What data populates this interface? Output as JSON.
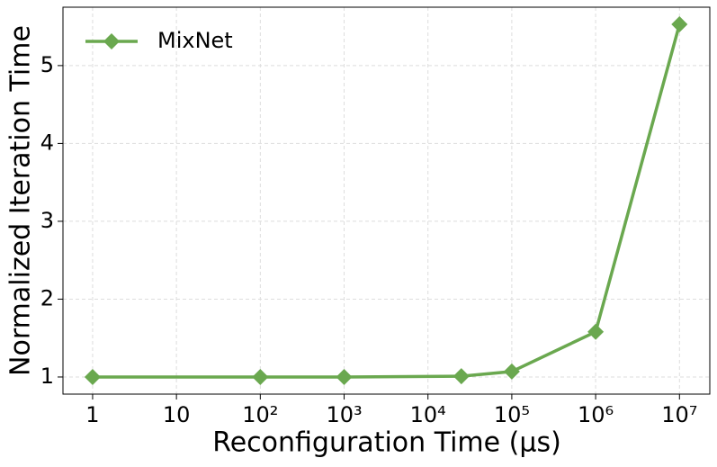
{
  "chart_data": {
    "type": "line",
    "xlabel": "Reconfiguration Time (μs)",
    "ylabel": "Normalized Iteration Time",
    "xscale": "log",
    "x": [
      1,
      100,
      1000,
      25000,
      100000,
      1000000,
      10000000
    ],
    "series": [
      {
        "name": "MixNet",
        "color": "#6aa84f",
        "marker": "diamond",
        "values": [
          1.0,
          1.0,
          1.0,
          1.01,
          1.07,
          1.58,
          5.53
        ]
      }
    ],
    "xlim": [
      0.443,
      23000000
    ],
    "ylim": [
      0.78,
      5.75
    ],
    "xticks": [
      1,
      10,
      {
        "value": 100,
        "label": "10²"
      },
      {
        "value": 1000,
        "label": "10³"
      },
      {
        "value": 10000,
        "label": "10⁴"
      },
      {
        "value": 100000,
        "label": "10⁵"
      },
      {
        "value": 1000000,
        "label": "10⁶"
      },
      {
        "value": 10000000,
        "label": "10⁷"
      }
    ],
    "yticks": [
      1,
      2,
      3,
      4,
      5
    ],
    "grid": true,
    "legend": "upper-left"
  }
}
